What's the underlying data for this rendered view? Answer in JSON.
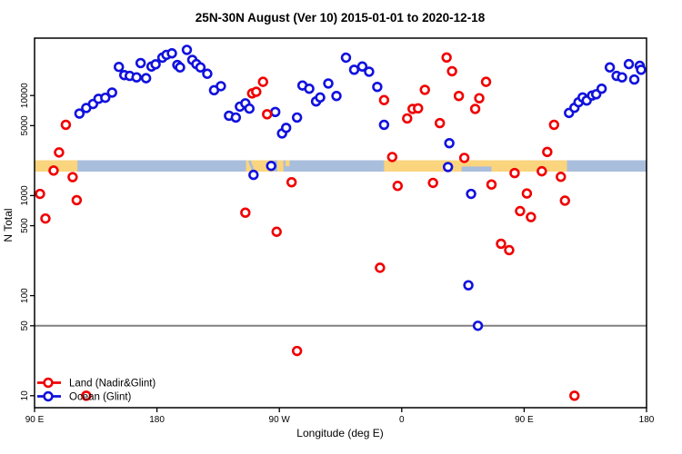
{
  "title": "25N-30N August (Ver 10)   2015-01-01 to 2020-12-18",
  "legend": {
    "items": [
      {
        "label": "Land (Nadir&Glint)",
        "color": "#f00000"
      },
      {
        "label": "Ocean (Glint)",
        "color": "#1111dd"
      }
    ]
  },
  "chart_data": {
    "type": "scatter",
    "title": "25N-30N August (Ver 10)   2015-01-01 to 2020-12-18",
    "xlabel": "Longitude (deg E)",
    "ylabel": "N Total",
    "x_axis": {
      "range_deg_east": [
        90,
        540
      ],
      "ticks": [
        {
          "lon": 90,
          "label": "90 E"
        },
        {
          "lon": 180,
          "label": "180"
        },
        {
          "lon": 270,
          "label": "90 W"
        },
        {
          "lon": 360,
          "label": "0"
        },
        {
          "lon": 450,
          "label": "90 E"
        },
        {
          "lon": 540,
          "label": "180"
        }
      ]
    },
    "y_axis": {
      "scale": "log",
      "range": [
        8,
        37000
      ],
      "ticks": [
        "10000",
        "5000",
        "1000",
        "500",
        "100",
        "50",
        "10"
      ]
    },
    "reference_line": {
      "value": 50,
      "color": "#808080"
    },
    "land_ocean_band": {
      "center_value": 2000,
      "ocean_color": "#a9bedc",
      "land_color": "#fbd47e",
      "land_segments_lon": [
        {
          "from": 90,
          "to": 121.5
        },
        {
          "from": 245.5,
          "to": 266
        },
        {
          "from": 268.5,
          "to": 273
        },
        {
          "from": 274.5,
          "to": 277.5,
          "half": true
        },
        {
          "from": 347,
          "to": 481.5
        }
      ],
      "ocean_inlets": [
        {
          "name": "gulf-of-california",
          "type": "diagonal",
          "from_lon": 248,
          "to_lon": 251
        },
        {
          "name": "persian-gulf",
          "type": "bottom",
          "from": 404,
          "to": 426
        }
      ]
    },
    "series": [
      {
        "name": "Ocean (Glint)",
        "color": "#1111dd",
        "points": [
          [
            123,
            6600
          ],
          [
            128,
            7500
          ],
          [
            133,
            8230
          ],
          [
            137,
            9270
          ],
          [
            142,
            9500
          ],
          [
            147,
            10700
          ],
          [
            152,
            19300
          ],
          [
            156,
            16000
          ],
          [
            160,
            15700
          ],
          [
            165,
            15200
          ],
          [
            168,
            21100
          ],
          [
            172,
            14900
          ],
          [
            176,
            19500
          ],
          [
            179,
            20500
          ],
          [
            184,
            23900
          ],
          [
            187,
            25500
          ],
          [
            191,
            26400
          ],
          [
            195,
            20200
          ],
          [
            197,
            19100
          ],
          [
            202,
            28600
          ],
          [
            206,
            22700
          ],
          [
            209,
            20600
          ],
          [
            212,
            19100
          ],
          [
            217,
            16500
          ],
          [
            222,
            11300
          ],
          [
            227,
            12400
          ],
          [
            233,
            6280
          ],
          [
            238,
            6030
          ],
          [
            241,
            7750
          ],
          [
            245,
            8360
          ],
          [
            248,
            7400
          ],
          [
            251,
            1610
          ],
          [
            264,
            1980
          ],
          [
            267,
            6850
          ],
          [
            272,
            4180
          ],
          [
            275,
            4750
          ],
          [
            283,
            6030
          ],
          [
            287,
            12600
          ],
          [
            292,
            11700
          ],
          [
            297,
            8730
          ],
          [
            300,
            9560
          ],
          [
            306,
            13200
          ],
          [
            312,
            9900
          ],
          [
            319,
            23900
          ],
          [
            325,
            18100
          ],
          [
            331,
            19500
          ],
          [
            336,
            17300
          ],
          [
            342,
            12200
          ],
          [
            347,
            5100
          ],
          [
            394,
            1930
          ],
          [
            395,
            3340
          ],
          [
            409,
            127
          ],
          [
            411,
            1040
          ],
          [
            416,
            50
          ],
          [
            483,
            6700
          ],
          [
            487,
            7540
          ],
          [
            490,
            8570
          ],
          [
            493,
            9570
          ],
          [
            496,
            8920
          ],
          [
            500,
            10000
          ],
          [
            503,
            10300
          ],
          [
            507,
            11700
          ],
          [
            513,
            19100
          ],
          [
            518,
            15700
          ],
          [
            522,
            15200
          ],
          [
            527,
            20600
          ],
          [
            531,
            14450
          ],
          [
            535,
            19800
          ],
          [
            536,
            18100
          ]
        ]
      },
      {
        "name": "Land (Nadir&Glint)",
        "color": "#f00000",
        "points": [
          [
            94,
            1040
          ],
          [
            98,
            590
          ],
          [
            104,
            1780
          ],
          [
            108,
            2700
          ],
          [
            113,
            5100
          ],
          [
            118,
            1530
          ],
          [
            121,
            900
          ],
          [
            128,
            10
          ],
          [
            245,
            675
          ],
          [
            250,
            10500
          ],
          [
            253,
            10900
          ],
          [
            258,
            13700
          ],
          [
            261,
            6500
          ],
          [
            268,
            435
          ],
          [
            279,
            1360
          ],
          [
            283,
            28
          ],
          [
            344,
            190
          ],
          [
            347,
            9000
          ],
          [
            353,
            2430
          ],
          [
            357,
            1250
          ],
          [
            364,
            5900
          ],
          [
            368,
            7350
          ],
          [
            372,
            7450
          ],
          [
            377,
            11400
          ],
          [
            383,
            1340
          ],
          [
            388,
            5300
          ],
          [
            393,
            24000
          ],
          [
            397,
            17500
          ],
          [
            402,
            9900
          ],
          [
            406,
            2380
          ],
          [
            414,
            7350
          ],
          [
            417,
            9400
          ],
          [
            422,
            13700
          ],
          [
            426,
            1290
          ],
          [
            433,
            330
          ],
          [
            439,
            285
          ],
          [
            443,
            1680
          ],
          [
            447,
            700
          ],
          [
            452,
            1050
          ],
          [
            455,
            610
          ],
          [
            463,
            1750
          ],
          [
            467,
            2730
          ],
          [
            472,
            5100
          ],
          [
            477,
            1540
          ],
          [
            480,
            890
          ],
          [
            487,
            10
          ]
        ]
      }
    ]
  }
}
